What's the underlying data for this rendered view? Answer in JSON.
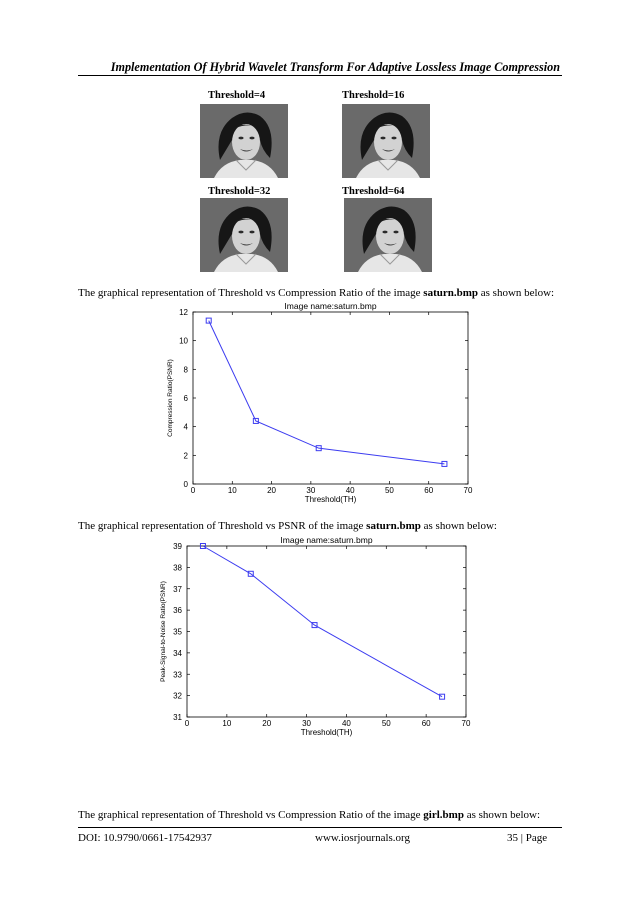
{
  "header": {
    "running_title": "Implementation Of Hybrid Wavelet Transform For Adaptive Lossless Image Compression"
  },
  "figure_thresholds": {
    "labels": [
      "Threshold=4",
      "Threshold=16",
      "Threshold=32",
      "Threshold=64"
    ]
  },
  "paragraphs": {
    "p1_pre": "The graphical representation of Threshold vs Compression Ratio of the image ",
    "p1_bold": "saturn.bmp",
    "p1_post": " as shown below:",
    "p2_pre": "The graphical representation of Threshold vs PSNR of the image ",
    "p2_bold": "saturn.bmp",
    "p2_post": " as shown below:",
    "p3_pre": "The graphical representation of Threshold vs Compression Ratio of the image ",
    "p3_bold": "girl.bmp",
    "p3_post": " as shown below:"
  },
  "chart_data": [
    {
      "type": "line",
      "title": "Image name:saturn.bmp",
      "xlabel": "Threshold(TH)",
      "ylabel": "Compression Ratio(PSNR)",
      "xlim": [
        0,
        70
      ],
      "ylim": [
        0,
        12
      ],
      "xticks": [
        0,
        10,
        20,
        30,
        40,
        50,
        60,
        70
      ],
      "yticks": [
        0,
        2,
        4,
        6,
        8,
        10,
        12
      ],
      "color": "#3c3cf0",
      "marker": "square",
      "x": [
        4,
        16,
        32,
        64
      ],
      "y": [
        11.4,
        4.4,
        2.5,
        1.4
      ]
    },
    {
      "type": "line",
      "title": "Image name:saturn.bmp",
      "xlabel": "Threshold(TH)",
      "ylabel": "Peak-Signal-to-Noise Ratio(PSNR)",
      "xlim": [
        0,
        70
      ],
      "ylim": [
        31,
        39
      ],
      "xticks": [
        0,
        10,
        20,
        30,
        40,
        50,
        60,
        70
      ],
      "yticks": [
        31,
        32,
        33,
        34,
        35,
        36,
        37,
        38,
        39
      ],
      "color": "#3c3cf0",
      "marker": "square",
      "x": [
        4,
        16,
        32,
        64
      ],
      "y": [
        39,
        37.7,
        35.3,
        31.95
      ]
    }
  ],
  "footer": {
    "doi": "DOI: 10.9790/0661-17542937",
    "site": "www.iosrjournals.org",
    "page": "35 | Page"
  }
}
